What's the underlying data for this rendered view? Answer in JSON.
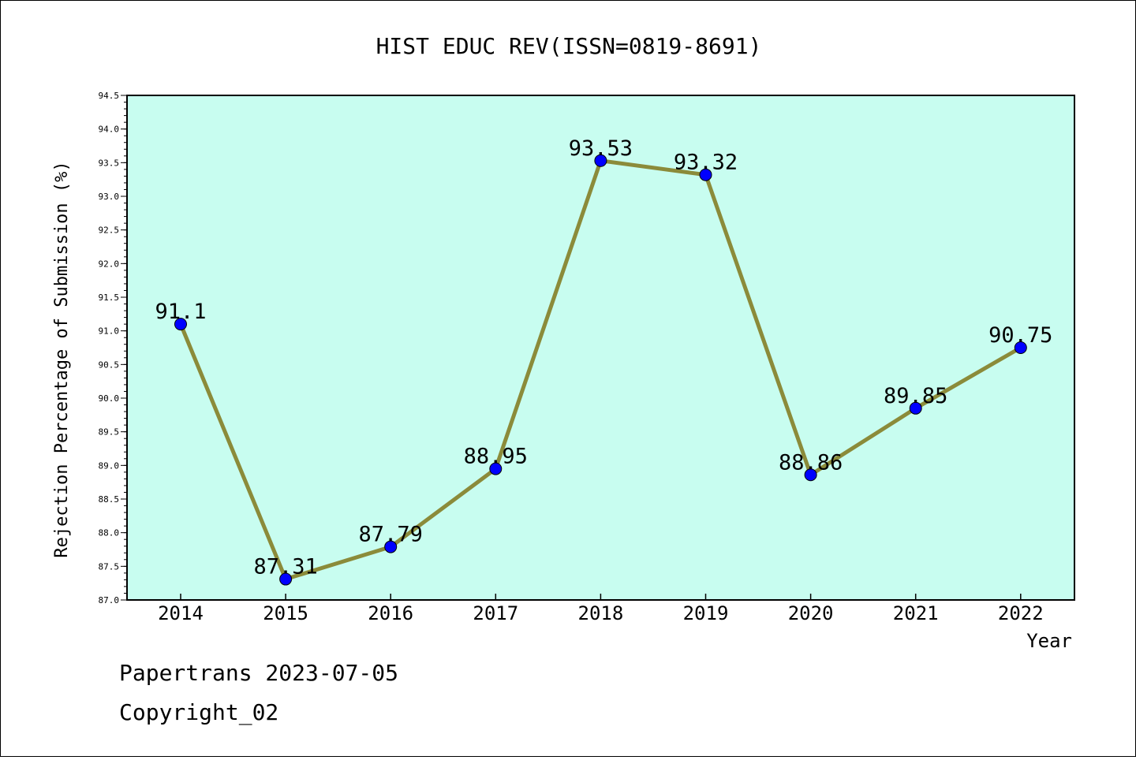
{
  "chart_data": {
    "type": "line",
    "title": "HIST EDUC REV(ISSN=0819-8691)",
    "xlabel": "Year",
    "ylabel": "Rejection Percentage of Submission (%)",
    "categories": [
      "2014",
      "2015",
      "2016",
      "2017",
      "2018",
      "2019",
      "2020",
      "2021",
      "2022"
    ],
    "values": [
      91.1,
      87.31,
      87.79,
      88.95,
      93.53,
      93.32,
      88.86,
      89.85,
      90.75
    ],
    "data_labels": [
      "91.1",
      "87.31",
      "87.79",
      "88.95",
      "93.53",
      "93.32",
      "88.86",
      "89.85",
      "90.75"
    ],
    "ylim": [
      87.0,
      94.5
    ],
    "y_ticks": [
      "87.0",
      "87.5",
      "88.0",
      "88.5",
      "89.0",
      "89.5",
      "90.0",
      "90.5",
      "91.0",
      "91.5",
      "92.0",
      "92.5",
      "93.0",
      "93.5",
      "94.0",
      "94.5"
    ],
    "grid": false,
    "colors": {
      "plot_background": "#c8fdf0",
      "line": "#8b8b3a",
      "marker": "#0000ff"
    }
  },
  "footer": {
    "source": "Papertrans 2023-07-05",
    "copyright": "Copyright_02"
  }
}
